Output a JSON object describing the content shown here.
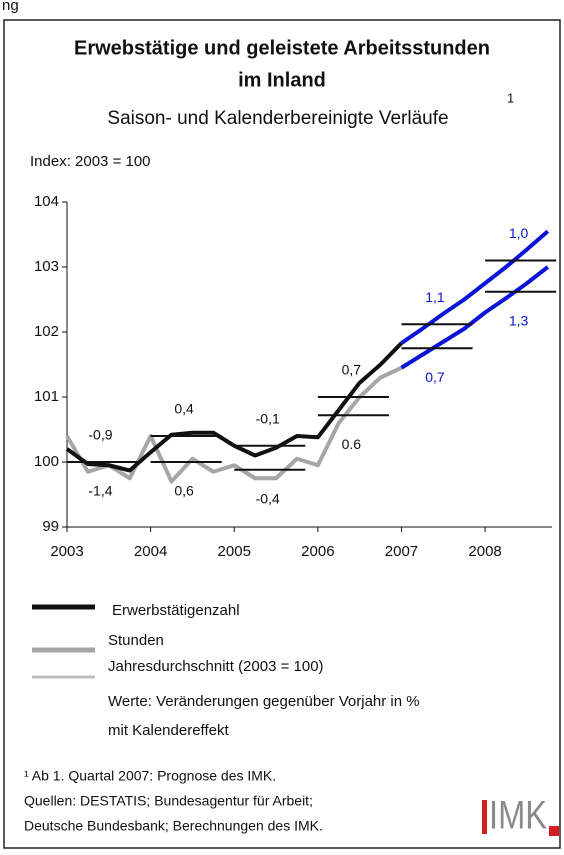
{
  "header_fragment": "ng",
  "chart_data": {
    "type": "line",
    "title": "Erwebstätige und geleistete Arbeitsstunden",
    "title_line2": "im Inland",
    "subtitle": "Saison- und Kalenderbereinigte Verläufe",
    "subtitle_note": "1",
    "y_label": "Index: 2003 = 100",
    "x": [
      2003,
      2003.25,
      2003.5,
      2003.75,
      2004,
      2004.25,
      2004.5,
      2004.75,
      2005,
      2005.25,
      2005.5,
      2005.75,
      2006,
      2006.25,
      2006.5,
      2006.75,
      2007,
      2007.25,
      2007.5,
      2007.75,
      2008,
      2008.25,
      2008.5,
      2008.75
    ],
    "xlim": [
      2003,
      2008.8
    ],
    "xticks": [
      2003,
      2004,
      2005,
      2006,
      2007,
      2008
    ],
    "ylim": [
      99,
      104
    ],
    "yticks": [
      99,
      100,
      101,
      102,
      103,
      104
    ],
    "forecast_from": 2007,
    "forecast_color": "#0a14d8",
    "series": [
      {
        "name": "Erwerbstätigenzahl",
        "color": "#111111",
        "width": 4,
        "values": [
          100.2,
          99.97,
          99.95,
          99.87,
          100.15,
          100.42,
          100.45,
          100.45,
          100.25,
          100.1,
          100.22,
          100.4,
          100.38,
          100.8,
          101.22,
          101.5,
          101.83,
          102.05,
          102.28,
          102.5,
          102.75,
          103.0,
          103.27,
          103.55
        ],
        "annual_x": [
          2003,
          2004,
          2005,
          2006,
          2007,
          2008
        ],
        "annual_averages": [
          100.0,
          100.4,
          100.25,
          101.0,
          102.12,
          103.1
        ],
        "changes": [
          -0.9,
          0.4,
          -0.1,
          0.7,
          1.1,
          1.0
        ],
        "change_labels": [
          "-0,9",
          "0,4",
          "-0,1",
          "0,7",
          "1,1",
          "1,0"
        ],
        "label_side": "above"
      },
      {
        "name": "Stunden",
        "color": "#a6a6a6",
        "width": 4,
        "values": [
          100.4,
          99.85,
          99.95,
          99.75,
          100.4,
          99.7,
          100.05,
          99.85,
          99.95,
          99.75,
          99.75,
          100.05,
          99.95,
          100.6,
          101.0,
          101.3,
          101.45,
          101.65,
          101.85,
          102.05,
          102.3,
          102.52,
          102.75,
          103.0
        ],
        "annual_x": [
          2003,
          2004,
          2005,
          2006,
          2007,
          2008
        ],
        "annual_averages": [
          100.0,
          100.0,
          99.88,
          100.72,
          101.75,
          102.62
        ],
        "changes": [
          -1.4,
          0.6,
          -0.4,
          0.6,
          0.7,
          1.3
        ],
        "change_labels": [
          "-1,4",
          "0,6",
          "-0,4",
          "0.6",
          "0,7",
          "1,3"
        ],
        "label_side": "below"
      }
    ],
    "average_legend": {
      "name": "Jahresdurchschnitt (2003 = 100)",
      "color": "#bdbdbd",
      "line_color": "#111111"
    },
    "notes": [
      "Werte: Veränderungen gegenüber Vorjahr in %",
      "mit Kalendereffekt"
    ]
  },
  "footnotes": [
    "¹ Ab 1. Quartal 2007: Prognose des IMK.",
    "Quellen: DESTATIS; Bundesagentur für Arbeit;",
    "Deutsche Bundesbank; Berechnungen des IMK."
  ],
  "logo": "IMK"
}
